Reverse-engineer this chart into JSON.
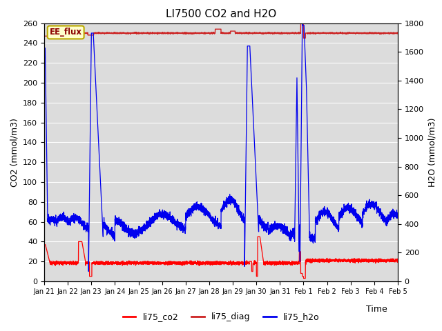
{
  "title": "LI7500 CO2 and H2O",
  "xlabel": "Time",
  "ylabel_left": "CO2 (mmol/m3)",
  "ylabel_right": "H2O (mmol/m3)",
  "ylim_left": [
    0,
    260
  ],
  "ylim_right": [
    0,
    1800
  ],
  "yticks_left": [
    0,
    20,
    40,
    60,
    80,
    100,
    120,
    140,
    160,
    180,
    200,
    220,
    240,
    260
  ],
  "yticks_right": [
    0,
    200,
    400,
    600,
    800,
    1000,
    1200,
    1400,
    1600,
    1800
  ],
  "xlim": [
    0,
    15
  ],
  "xtick_labels": [
    "Jan 21",
    "Jan 22",
    "Jan 23",
    "Jan 24",
    "Jan 25",
    "Jan 26",
    "Jan 27",
    "Jan 28",
    "Jan 29",
    "Jan 30",
    "Jan 31",
    "Feb 1",
    "Feb 2",
    "Feb 3",
    "Feb 4",
    "Feb 5"
  ],
  "color_co2": "#ff0000",
  "color_diag": "#cc2222",
  "color_h2o": "#0000ee",
  "bg_color": "#dcdcdc",
  "grid_color": "#ffffff",
  "annotation_text": "EE_flux",
  "annotation_bg": "#ffffcc",
  "annotation_border": "#bbaa00",
  "legend_labels": [
    "li75_co2",
    "li75_diag",
    "li75_h2o"
  ]
}
